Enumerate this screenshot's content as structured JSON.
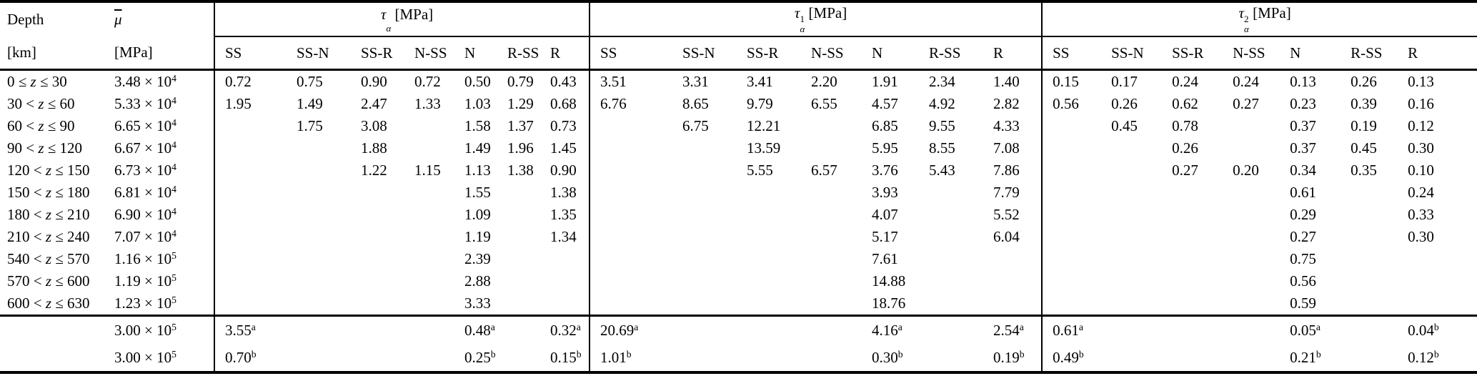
{
  "table": {
    "col1": {
      "line1": "Depth",
      "line2": "[km]"
    },
    "col2": {
      "symbol": "μ",
      "line2": "[MPa]"
    },
    "groups": [
      {
        "tau_base": "τ",
        "tau_sup": "",
        "tau_sub": "α",
        "unit": "[MPa]",
        "columns": [
          "SS",
          "SS-N",
          "SS-R",
          "N-SS",
          "N",
          "R-SS",
          "R"
        ]
      },
      {
        "tau_base": "τ",
        "tau_sup": "1",
        "tau_sub": "α",
        "unit": "[MPa]",
        "columns": [
          "SS",
          "SS-N",
          "SS-R",
          "N-SS",
          "N",
          "R-SS",
          "R"
        ]
      },
      {
        "tau_base": "τ",
        "tau_sup": "2",
        "tau_sub": "α",
        "unit": "[MPa]",
        "columns": [
          "SS",
          "SS-N",
          "SS-R",
          "N-SS",
          "N",
          "R-SS",
          "R"
        ]
      }
    ],
    "rows": [
      {
        "depth": "0 ≤ z ≤ 30",
        "mu": "3.48 × 10^4",
        "cells": [
          "0.72",
          "0.75",
          "0.90",
          "0.72",
          "0.50",
          "0.79",
          "0.43",
          "3.51",
          "3.31",
          "3.41",
          "2.20",
          "1.91",
          "2.34",
          "1.40",
          "0.15",
          "0.17",
          "0.24",
          "0.24",
          "0.13",
          "0.26",
          "0.13"
        ]
      },
      {
        "depth": "30 < z ≤ 60",
        "mu": "5.33 × 10^4",
        "cells": [
          "1.95",
          "1.49",
          "2.47",
          "1.33",
          "1.03",
          "1.29",
          "0.68",
          "6.76",
          "8.65",
          "9.79",
          "6.55",
          "4.57",
          "4.92",
          "2.82",
          "0.56",
          "0.26",
          "0.62",
          "0.27",
          "0.23",
          "0.39",
          "0.16"
        ]
      },
      {
        "depth": "60 < z ≤ 90",
        "mu": "6.65 × 10^4",
        "cells": [
          "",
          "1.75",
          "3.08",
          "",
          "1.58",
          "1.37",
          "0.73",
          "",
          "6.75",
          "12.21",
          "",
          "6.85",
          "9.55",
          "4.33",
          "",
          "0.45",
          "0.78",
          "",
          "0.37",
          "0.19",
          "0.12"
        ]
      },
      {
        "depth": "90 < z ≤ 120",
        "mu": "6.67 × 10^4",
        "cells": [
          "",
          "",
          "1.88",
          "",
          "1.49",
          "1.96",
          "1.45",
          "",
          "",
          "13.59",
          "",
          "5.95",
          "8.55",
          "7.08",
          "",
          "",
          "0.26",
          "",
          "0.37",
          "0.45",
          "0.30"
        ]
      },
      {
        "depth": "120 < z ≤ 150",
        "mu": "6.73 × 10^4",
        "cells": [
          "",
          "",
          "1.22",
          "1.15",
          "1.13",
          "1.38",
          "0.90",
          "",
          "",
          "5.55",
          "6.57",
          "3.76",
          "5.43",
          "7.86",
          "",
          "",
          "0.27",
          "0.20",
          "0.34",
          "0.35",
          "0.10"
        ]
      },
      {
        "depth": "150 < z ≤ 180",
        "mu": "6.81 × 10^4",
        "cells": [
          "",
          "",
          "",
          "",
          "1.55",
          "",
          "1.38",
          "",
          "",
          "",
          "",
          "3.93",
          "",
          "7.79",
          "",
          "",
          "",
          "",
          "0.61",
          "",
          "0.24"
        ]
      },
      {
        "depth": "180 < z ≤ 210",
        "mu": "6.90 × 10^4",
        "cells": [
          "",
          "",
          "",
          "",
          "1.09",
          "",
          "1.35",
          "",
          "",
          "",
          "",
          "4.07",
          "",
          "5.52",
          "",
          "",
          "",
          "",
          "0.29",
          "",
          "0.33"
        ]
      },
      {
        "depth": "210 < z ≤ 240",
        "mu": "7.07 × 10^4",
        "cells": [
          "",
          "",
          "",
          "",
          "1.19",
          "",
          "1.34",
          "",
          "",
          "",
          "",
          "5.17",
          "",
          "6.04",
          "",
          "",
          "",
          "",
          "0.27",
          "",
          "0.30"
        ]
      },
      {
        "depth": "540 < z ≤ 570",
        "mu": "1.16 × 10^5",
        "cells": [
          "",
          "",
          "",
          "",
          "2.39",
          "",
          "",
          "",
          "",
          "",
          "",
          "7.61",
          "",
          "",
          "",
          "",
          "",
          "",
          "0.75",
          "",
          ""
        ]
      },
      {
        "depth": "570 < z ≤ 600",
        "mu": "1.19 × 10^5",
        "cells": [
          "",
          "",
          "",
          "",
          "2.88",
          "",
          "",
          "",
          "",
          "",
          "",
          "14.88",
          "",
          "",
          "",
          "",
          "",
          "",
          "0.56",
          "",
          ""
        ]
      },
      {
        "depth": "600 < z ≤ 630",
        "mu": "1.23 × 10^5",
        "cells": [
          "",
          "",
          "",
          "",
          "3.33",
          "",
          "",
          "",
          "",
          "",
          "",
          "18.76",
          "",
          "",
          "",
          "",
          "",
          "",
          "0.59",
          "",
          ""
        ]
      }
    ],
    "footer_rows": [
      {
        "depth": "",
        "mu": "3.00 × 10^5",
        "cells": [
          "3.55^a",
          "",
          "",
          "",
          "0.48^a",
          "",
          "0.32^a",
          "20.69^a",
          "",
          "",
          "",
          "4.16^a",
          "",
          "2.54^a",
          "0.61^a",
          "",
          "",
          "",
          "0.05^a",
          "",
          "0.04^b"
        ]
      },
      {
        "depth": "",
        "mu": "3.00 × 10^5",
        "cells": [
          "0.70^b",
          "",
          "",
          "",
          "0.25^b",
          "",
          "0.15^b",
          "1.01^b",
          "",
          "",
          "",
          "0.30^b",
          "",
          "0.19^b",
          "0.49^b",
          "",
          "",
          "",
          "0.21^b",
          "",
          "0.12^b"
        ]
      }
    ]
  }
}
